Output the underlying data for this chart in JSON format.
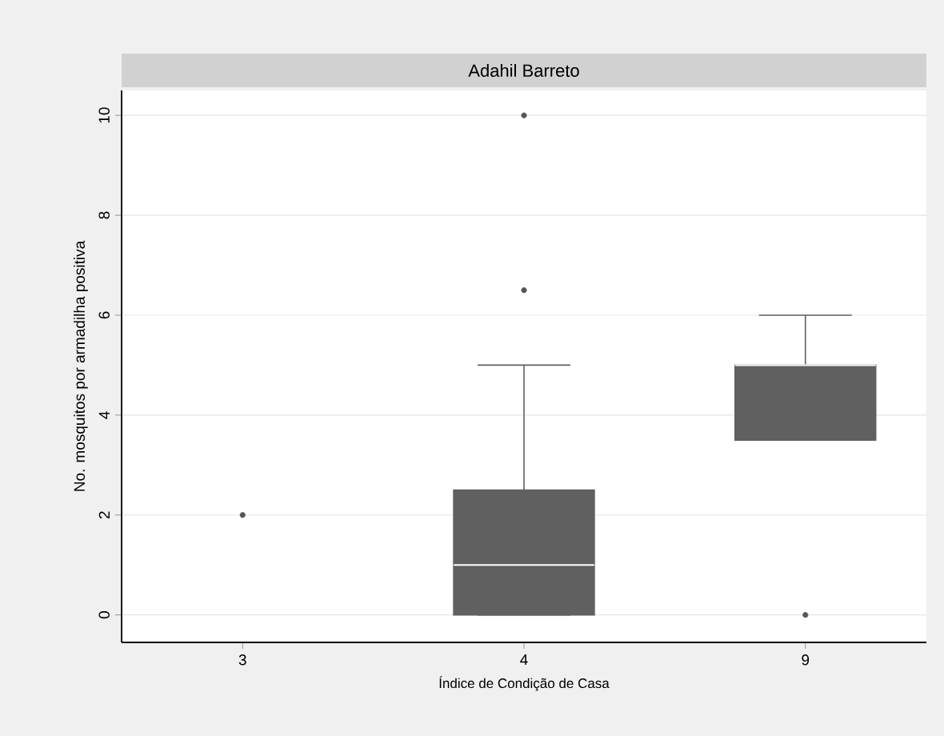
{
  "chart_data": {
    "type": "box",
    "title": "Adahil Barreto",
    "xlabel": "Índice de Condição de Casa",
    "ylabel": "No. mosquitos por armadilha positiva",
    "categories": [
      "3",
      "4",
      "9"
    ],
    "boxes": [
      null,
      {
        "low": 0,
        "q1": 0,
        "median": 1,
        "q3": 2.5,
        "high": 5,
        "outliers": [
          6.5,
          10
        ]
      },
      {
        "low": 3.5,
        "q1": 3.5,
        "median": 5,
        "q3": 5,
        "high": 6,
        "outliers": [
          0
        ]
      }
    ],
    "series": [
      {
        "type": "scatter",
        "x": [
          "3"
        ],
        "values": [
          2
        ],
        "color": "#555555"
      }
    ],
    "color": "#606060",
    "ylim": [
      -0.55,
      10.5
    ],
    "yticks": [
      0,
      2,
      4,
      6,
      8,
      10
    ],
    "grid": "y"
  }
}
